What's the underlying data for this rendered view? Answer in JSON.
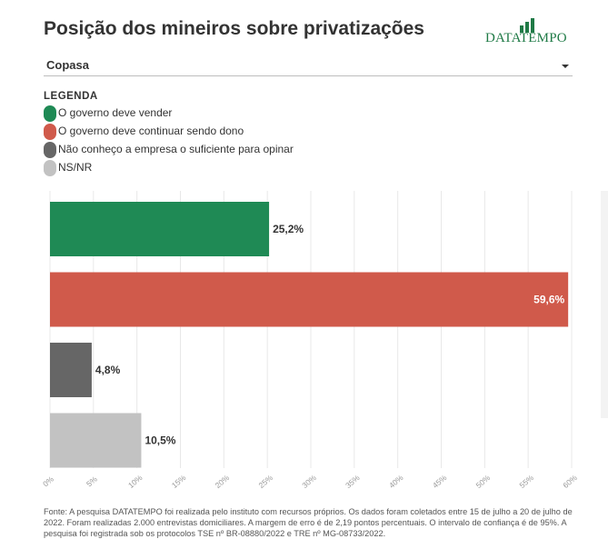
{
  "title": "Posição dos mineiros sobre privatizações",
  "brand": "DATATEMPO",
  "select": {
    "value": "Copasa"
  },
  "legend": {
    "title": "LEGENDA",
    "items": [
      {
        "label": "O governo deve vender",
        "color": "#1f8a55"
      },
      {
        "label": "O governo deve continuar sendo dono",
        "color": "#d05a4b"
      },
      {
        "label": "Não conheço a empresa o suficiente para opinar",
        "color": "#666666"
      },
      {
        "label": "NS/NR",
        "color": "#c2c2c2"
      }
    ]
  },
  "chart_data": {
    "type": "bar",
    "orientation": "horizontal",
    "categories": [
      "O governo deve vender",
      "O governo deve continuar sendo dono",
      "Não conheço a empresa o suficiente para opinar",
      "NS/NR"
    ],
    "values": [
      25.2,
      59.6,
      4.8,
      10.5
    ],
    "value_labels": [
      "25,2%",
      "59,6%",
      "4,8%",
      "10,5%"
    ],
    "colors": [
      "#1f8a55",
      "#d05a4b",
      "#666666",
      "#c2c2c2"
    ],
    "xlim": [
      0,
      60
    ],
    "xticks": [
      "0%",
      "5%",
      "10%",
      "15%",
      "20%",
      "25%",
      "30%",
      "35%",
      "40%",
      "45%",
      "50%",
      "55%",
      "60%"
    ],
    "grid": true,
    "legend_position": "top-left"
  },
  "footer": "Fonte: A pesquisa DATATEMPO foi realizada pelo instituto com recursos próprios. Os dados foram coletados entre 15 de julho a 20 de julho de 2022. Foram realizadas 2.000 entrevistas domiciliares. A margem de erro é de 2,19 pontos percentuais. O intervalo de confiança é de 95%. A pesquisa foi registrada sob os protocolos TSE nº BR-08880/2022 e TRE nº MG-08733/2022."
}
